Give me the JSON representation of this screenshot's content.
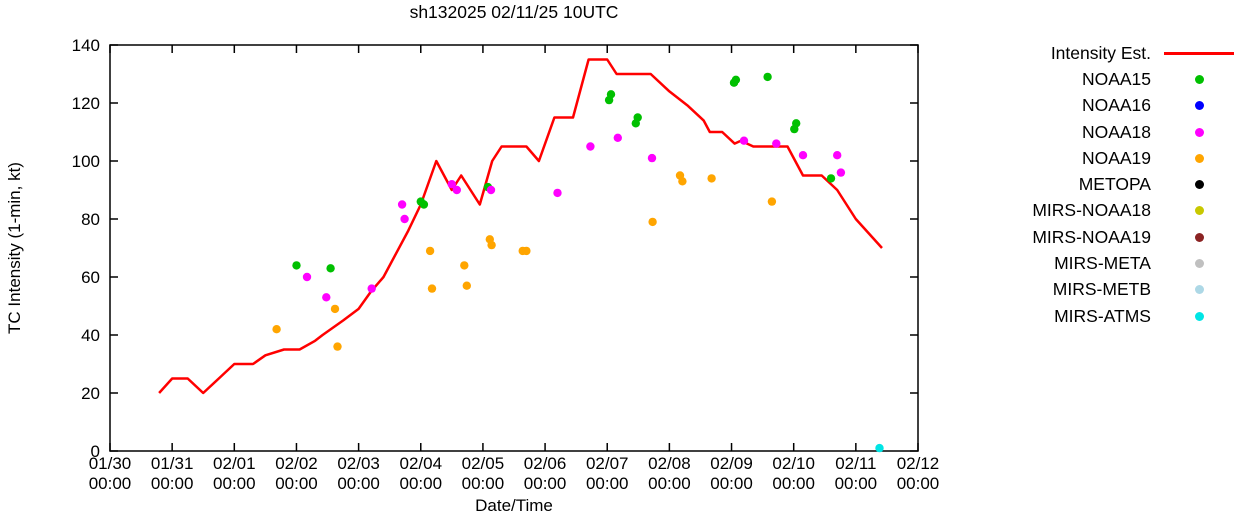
{
  "chart_data": {
    "type": "line",
    "title": "sh132025 02/11/25 10UTC",
    "xlabel": "Date/Time",
    "ylabel": "TC Intensity (1-min, kt)",
    "ylim": [
      0,
      140
    ],
    "yticks": [
      0,
      20,
      40,
      60,
      80,
      100,
      120,
      140
    ],
    "grid": false,
    "legend_position": "outside-right",
    "x_axis": {
      "x_unit": "days_from_01/30_00:00",
      "range_days": [
        0,
        13
      ],
      "tick_dates": [
        "01/30",
        "01/31",
        "02/01",
        "02/02",
        "02/03",
        "02/04",
        "02/05",
        "02/06",
        "02/07",
        "02/08",
        "02/09",
        "02/10",
        "02/11",
        "02/12"
      ],
      "tick_time": "00:00"
    },
    "series": [
      {
        "name": "Intensity Est.",
        "type": "line",
        "color": "#ff0000",
        "points": [
          [
            0.79,
            20
          ],
          [
            1.0,
            25
          ],
          [
            1.25,
            25
          ],
          [
            1.5,
            20
          ],
          [
            1.75,
            25
          ],
          [
            2.0,
            30
          ],
          [
            2.3,
            30
          ],
          [
            2.5,
            33
          ],
          [
            2.8,
            35
          ],
          [
            3.05,
            35
          ],
          [
            3.3,
            38
          ],
          [
            3.42,
            40
          ],
          [
            3.75,
            45
          ],
          [
            4.0,
            49
          ],
          [
            4.2,
            55
          ],
          [
            4.4,
            60
          ],
          [
            4.6,
            68
          ],
          [
            4.8,
            76
          ],
          [
            5.0,
            85
          ],
          [
            5.25,
            100
          ],
          [
            5.5,
            90
          ],
          [
            5.65,
            95
          ],
          [
            5.95,
            85
          ],
          [
            6.15,
            100
          ],
          [
            6.3,
            105
          ],
          [
            6.7,
            105
          ],
          [
            6.9,
            100
          ],
          [
            7.15,
            115
          ],
          [
            7.45,
            115
          ],
          [
            7.7,
            135
          ],
          [
            8.0,
            135
          ],
          [
            8.15,
            130
          ],
          [
            8.7,
            130
          ],
          [
            9.0,
            124
          ],
          [
            9.3,
            119
          ],
          [
            9.55,
            114
          ],
          [
            9.65,
            110
          ],
          [
            9.85,
            110
          ],
          [
            10.05,
            106
          ],
          [
            10.15,
            107
          ],
          [
            10.35,
            105
          ],
          [
            10.9,
            105
          ],
          [
            11.15,
            95
          ],
          [
            11.45,
            95
          ],
          [
            11.7,
            90
          ],
          [
            12.0,
            80
          ],
          [
            12.42,
            70
          ]
        ]
      },
      {
        "name": "NOAA15",
        "type": "scatter",
        "color": "#00c000",
        "points": [
          [
            3.0,
            64
          ],
          [
            3.55,
            63
          ],
          [
            5.0,
            86
          ],
          [
            5.05,
            85
          ],
          [
            6.08,
            91
          ],
          [
            8.03,
            121
          ],
          [
            8.06,
            123
          ],
          [
            8.46,
            113
          ],
          [
            8.49,
            115
          ],
          [
            10.04,
            127
          ],
          [
            10.07,
            128
          ],
          [
            10.58,
            129
          ],
          [
            11.01,
            111
          ],
          [
            11.04,
            113
          ],
          [
            11.6,
            94
          ]
        ]
      },
      {
        "name": "NOAA16",
        "type": "scatter",
        "color": "#0000ff",
        "points": []
      },
      {
        "name": "NOAA18",
        "type": "scatter",
        "color": "#ff00ff",
        "points": [
          [
            3.17,
            60
          ],
          [
            3.48,
            53
          ],
          [
            4.21,
            56
          ],
          [
            4.7,
            85
          ],
          [
            4.74,
            80
          ],
          [
            5.5,
            92
          ],
          [
            5.58,
            90
          ],
          [
            6.13,
            90
          ],
          [
            7.2,
            89
          ],
          [
            7.73,
            105
          ],
          [
            8.17,
            108
          ],
          [
            8.72,
            101
          ],
          [
            10.2,
            107
          ],
          [
            10.72,
            106
          ],
          [
            11.15,
            102
          ],
          [
            11.7,
            102
          ],
          [
            11.76,
            96
          ]
        ]
      },
      {
        "name": "NOAA19",
        "type": "scatter",
        "color": "#ffa500",
        "points": [
          [
            2.68,
            42
          ],
          [
            3.62,
            49
          ],
          [
            3.66,
            36
          ],
          [
            5.15,
            69
          ],
          [
            5.18,
            56
          ],
          [
            5.7,
            64
          ],
          [
            5.74,
            57
          ],
          [
            6.11,
            73
          ],
          [
            6.14,
            71
          ],
          [
            6.64,
            69
          ],
          [
            6.7,
            69
          ],
          [
            8.73,
            79
          ],
          [
            9.17,
            95
          ],
          [
            9.21,
            93
          ],
          [
            9.68,
            94
          ],
          [
            10.65,
            86
          ]
        ]
      },
      {
        "name": "METOPA",
        "type": "scatter",
        "color": "#000000",
        "points": []
      },
      {
        "name": "MIRS-NOAA18",
        "type": "scatter",
        "color": "#c8c800",
        "points": []
      },
      {
        "name": "MIRS-NOAA19",
        "type": "scatter",
        "color": "#8b2323",
        "points": []
      },
      {
        "name": "MIRS-META",
        "type": "scatter",
        "color": "#c0c0c0",
        "points": []
      },
      {
        "name": "MIRS-METB",
        "type": "scatter",
        "color": "#add8e6",
        "points": []
      },
      {
        "name": "MIRS-ATMS",
        "type": "scatter",
        "color": "#00e5e5",
        "points": [
          [
            12.38,
            1
          ]
        ]
      }
    ]
  }
}
